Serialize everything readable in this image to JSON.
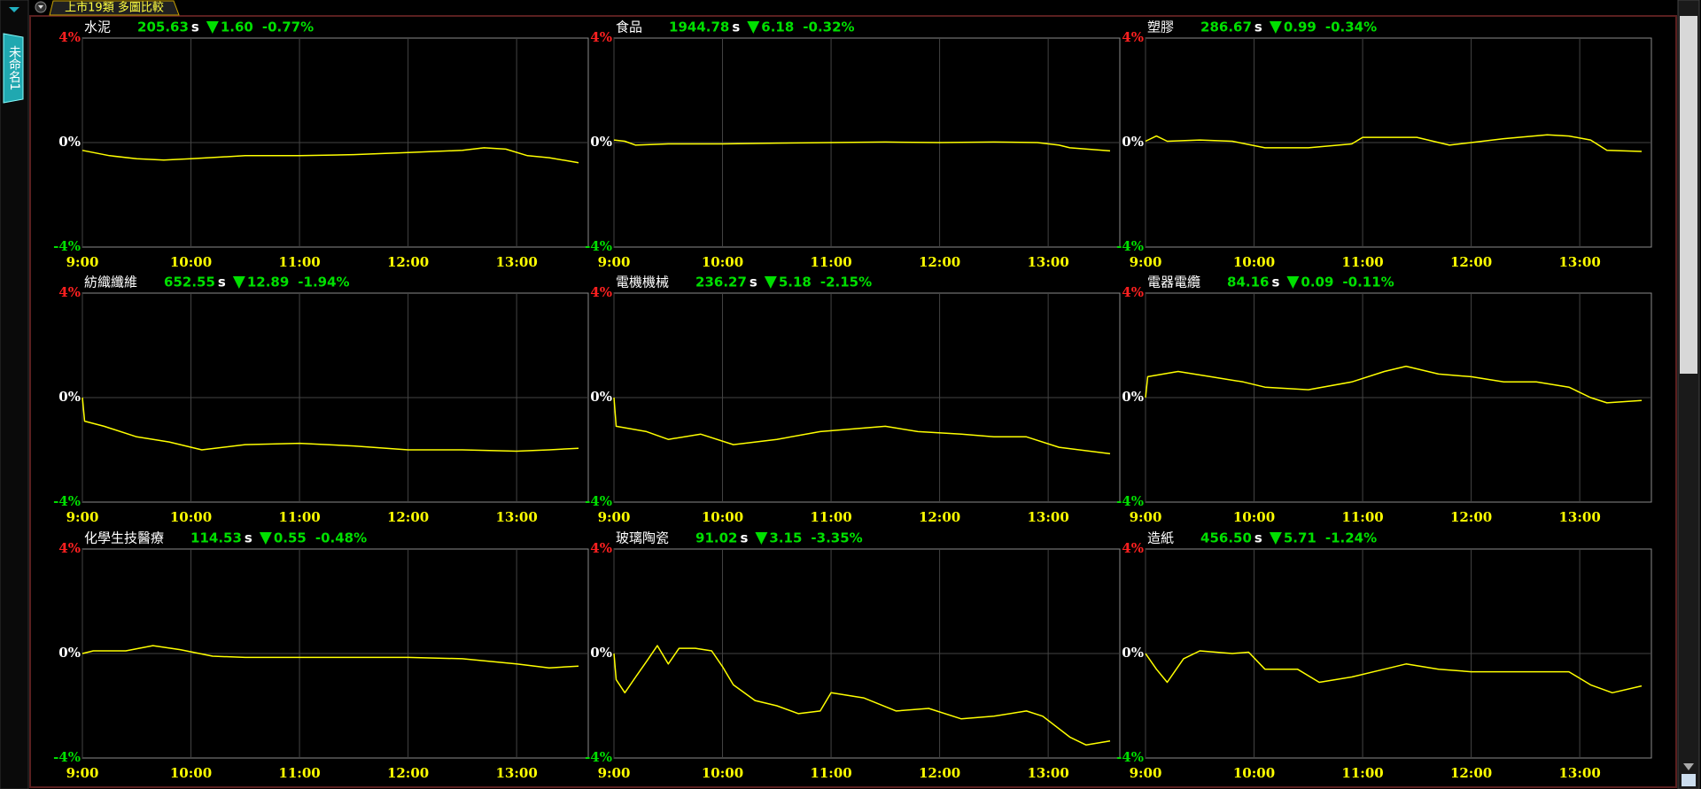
{
  "window": {
    "tab_title": "上市19類 多圖比較",
    "side_tab": "未命名1"
  },
  "chart_data": [
    {
      "type": "line",
      "name": "水泥",
      "price": "205.63",
      "unit": "s",
      "change": "1.60",
      "change_pct": "-0.77%",
      "x": [
        9,
        9.25,
        9.5,
        9.75,
        10,
        10.5,
        11,
        11.5,
        12,
        12.5,
        12.7,
        12.9,
        13.1,
        13.3,
        13.57
      ],
      "series": [
        {
          "color": "#ffff00",
          "values": [
            -0.3,
            -0.5,
            -0.62,
            -0.67,
            -0.62,
            -0.5,
            -0.5,
            -0.46,
            -0.38,
            -0.3,
            -0.2,
            -0.25,
            -0.5,
            -0.58,
            -0.77
          ]
        }
      ],
      "xlim": [
        9,
        13.66
      ],
      "ylim": [
        -4,
        4
      ],
      "xticks": [
        {
          "value": 9,
          "label": "9:00"
        },
        {
          "value": 10,
          "label": "10:00"
        },
        {
          "value": 11,
          "label": "11:00"
        },
        {
          "value": 12,
          "label": "12:00"
        },
        {
          "value": 13,
          "label": "13:00"
        }
      ],
      "yticks": [
        {
          "value": 4,
          "label": "4%"
        },
        {
          "value": 0,
          "label": "0%"
        },
        {
          "value": -4,
          "label": "-4%"
        }
      ],
      "ytick_colors": [
        "#ff2020",
        "#ffffff",
        "#00e000"
      ],
      "grid": true
    },
    {
      "type": "line",
      "name": "食品",
      "price": "1944.78",
      "unit": "s",
      "change": "6.18",
      "change_pct": "-0.32%",
      "x": [
        9,
        9.1,
        9.2,
        9.5,
        10,
        10.5,
        11,
        11.5,
        12,
        12.5,
        12.9,
        13.1,
        13.2,
        13.57
      ],
      "series": [
        {
          "color": "#ffff00",
          "values": [
            0.1,
            0.05,
            -0.1,
            -0.05,
            -0.05,
            -0.02,
            0,
            0.02,
            0,
            0.02,
            0,
            -0.1,
            -0.2,
            -0.32
          ]
        }
      ],
      "xlim": [
        9,
        13.66
      ],
      "ylim": [
        -4,
        4
      ],
      "xticks": [
        {
          "value": 9,
          "label": "9:00"
        },
        {
          "value": 10,
          "label": "10:00"
        },
        {
          "value": 11,
          "label": "11:00"
        },
        {
          "value": 12,
          "label": "12:00"
        },
        {
          "value": 13,
          "label": "13:00"
        }
      ],
      "yticks": [
        {
          "value": 4,
          "label": "4%"
        },
        {
          "value": 0,
          "label": "0%"
        },
        {
          "value": -4,
          "label": "-4%"
        }
      ],
      "ytick_colors": [
        "#ff2020",
        "#ffffff",
        "#00e000"
      ],
      "grid": true
    },
    {
      "type": "line",
      "name": "塑膠",
      "price": "286.67",
      "unit": "s",
      "change": "0.99",
      "change_pct": "-0.34%",
      "x": [
        9,
        9.1,
        9.2,
        9.5,
        9.8,
        10.1,
        10.5,
        10.9,
        11,
        11.3,
        11.5,
        11.8,
        12,
        12.3,
        12.7,
        12.9,
        13.1,
        13.25,
        13.57
      ],
      "series": [
        {
          "color": "#ffff00",
          "values": [
            0.05,
            0.25,
            0.05,
            0.1,
            0.05,
            -0.2,
            -0.2,
            -0.05,
            0.2,
            0.2,
            0.2,
            -0.1,
            0,
            0.15,
            0.3,
            0.25,
            0.1,
            -0.3,
            -0.34
          ]
        }
      ],
      "xlim": [
        9,
        13.66
      ],
      "ylim": [
        -4,
        4
      ],
      "xticks": [
        {
          "value": 9,
          "label": "9:00"
        },
        {
          "value": 10,
          "label": "10:00"
        },
        {
          "value": 11,
          "label": "11:00"
        },
        {
          "value": 12,
          "label": "12:00"
        },
        {
          "value": 13,
          "label": "13:00"
        }
      ],
      "yticks": [
        {
          "value": 4,
          "label": "4%"
        },
        {
          "value": 0,
          "label": "0%"
        },
        {
          "value": -4,
          "label": "-4%"
        }
      ],
      "ytick_colors": [
        "#ff2020",
        "#ffffff",
        "#00e000"
      ],
      "grid": true
    },
    {
      "type": "line",
      "name": "紡織纖維",
      "price": "652.55",
      "unit": "s",
      "change": "12.89",
      "change_pct": "-1.94%",
      "x": [
        9,
        9.02,
        9.2,
        9.5,
        9.8,
        10.1,
        10.5,
        11,
        11.5,
        12,
        12.5,
        13,
        13.3,
        13.57
      ],
      "series": [
        {
          "color": "#ffff00",
          "values": [
            0,
            -0.9,
            -1.1,
            -1.5,
            -1.7,
            -2.0,
            -1.8,
            -1.75,
            -1.85,
            -2.0,
            -2.0,
            -2.05,
            -2.0,
            -1.94
          ]
        }
      ],
      "xlim": [
        9,
        13.66
      ],
      "ylim": [
        -4,
        4
      ],
      "xticks": [
        {
          "value": 9,
          "label": "9:00"
        },
        {
          "value": 10,
          "label": "10:00"
        },
        {
          "value": 11,
          "label": "11:00"
        },
        {
          "value": 12,
          "label": "12:00"
        },
        {
          "value": 13,
          "label": "13:00"
        }
      ],
      "yticks": [
        {
          "value": 4,
          "label": "4%"
        },
        {
          "value": 0,
          "label": "0%"
        },
        {
          "value": -4,
          "label": "-4%"
        }
      ],
      "ytick_colors": [
        "#ff2020",
        "#ffffff",
        "#00e000"
      ],
      "grid": true
    },
    {
      "type": "line",
      "name": "電機機械",
      "price": "236.27",
      "unit": "s",
      "change": "5.18",
      "change_pct": "-2.15%",
      "x": [
        9,
        9.02,
        9.3,
        9.5,
        9.8,
        10.1,
        10.5,
        10.9,
        11.2,
        11.5,
        11.8,
        12.2,
        12.5,
        12.8,
        13.1,
        13.57
      ],
      "series": [
        {
          "color": "#ffff00",
          "values": [
            0,
            -1.1,
            -1.3,
            -1.6,
            -1.4,
            -1.8,
            -1.6,
            -1.3,
            -1.2,
            -1.1,
            -1.3,
            -1.4,
            -1.5,
            -1.5,
            -1.9,
            -2.15
          ]
        }
      ],
      "xlim": [
        9,
        13.66
      ],
      "ylim": [
        -4,
        4
      ],
      "xticks": [
        {
          "value": 9,
          "label": "9:00"
        },
        {
          "value": 10,
          "label": "10:00"
        },
        {
          "value": 11,
          "label": "11:00"
        },
        {
          "value": 12,
          "label": "12:00"
        },
        {
          "value": 13,
          "label": "13:00"
        }
      ],
      "yticks": [
        {
          "value": 4,
          "label": "4%"
        },
        {
          "value": 0,
          "label": "0%"
        },
        {
          "value": -4,
          "label": "-4%"
        }
      ],
      "ytick_colors": [
        "#ff2020",
        "#ffffff",
        "#00e000"
      ],
      "grid": true
    },
    {
      "type": "line",
      "name": "電器電纜",
      "price": "84.16",
      "unit": "s",
      "change": "0.09",
      "change_pct": "-0.11%",
      "x": [
        9,
        9.02,
        9.3,
        9.6,
        9.9,
        10.1,
        10.5,
        10.9,
        11.2,
        11.4,
        11.7,
        12,
        12.3,
        12.6,
        12.9,
        13.1,
        13.25,
        13.57
      ],
      "series": [
        {
          "color": "#ffff00",
          "values": [
            0,
            0.8,
            1.0,
            0.8,
            0.6,
            0.4,
            0.3,
            0.6,
            1.0,
            1.2,
            0.9,
            0.8,
            0.6,
            0.6,
            0.4,
            0.0,
            -0.2,
            -0.11
          ]
        }
      ],
      "xlim": [
        9,
        13.66
      ],
      "ylim": [
        -4,
        4
      ],
      "xticks": [
        {
          "value": 9,
          "label": "9:00"
        },
        {
          "value": 10,
          "label": "10:00"
        },
        {
          "value": 11,
          "label": "11:00"
        },
        {
          "value": 12,
          "label": "12:00"
        },
        {
          "value": 13,
          "label": "13:00"
        }
      ],
      "yticks": [
        {
          "value": 4,
          "label": "4%"
        },
        {
          "value": 0,
          "label": "0%"
        },
        {
          "value": -4,
          "label": "-4%"
        }
      ],
      "ytick_colors": [
        "#ff2020",
        "#ffffff",
        "#00e000"
      ],
      "grid": true
    },
    {
      "type": "line",
      "name": "化學生技醫療",
      "price": "114.53",
      "unit": "s",
      "change": "0.55",
      "change_pct": "-0.48%",
      "x": [
        9,
        9.1,
        9.4,
        9.65,
        9.9,
        10.2,
        10.5,
        11,
        11.5,
        12,
        12.5,
        13,
        13.3,
        13.57
      ],
      "series": [
        {
          "color": "#ffff00",
          "values": [
            0,
            0.1,
            0.1,
            0.3,
            0.15,
            -0.1,
            -0.15,
            -0.15,
            -0.15,
            -0.15,
            -0.2,
            -0.4,
            -0.55,
            -0.48
          ]
        }
      ],
      "xlim": [
        9,
        13.66
      ],
      "ylim": [
        -4,
        4
      ],
      "xticks": [
        {
          "value": 9,
          "label": "9:00"
        },
        {
          "value": 10,
          "label": "10:00"
        },
        {
          "value": 11,
          "label": "11:00"
        },
        {
          "value": 12,
          "label": "12:00"
        },
        {
          "value": 13,
          "label": "13:00"
        }
      ],
      "yticks": [
        {
          "value": 4,
          "label": "4%"
        },
        {
          "value": 0,
          "label": "0%"
        },
        {
          "value": -4,
          "label": "-4%"
        }
      ],
      "ytick_colors": [
        "#ff2020",
        "#ffffff",
        "#00e000"
      ],
      "grid": true
    },
    {
      "type": "line",
      "name": "玻璃陶瓷",
      "price": "91.02",
      "unit": "s",
      "change": "3.15",
      "change_pct": "-3.35%",
      "x": [
        9,
        9.02,
        9.1,
        9.2,
        9.3,
        9.4,
        9.5,
        9.6,
        9.75,
        9.9,
        10,
        10.1,
        10.3,
        10.5,
        10.7,
        10.9,
        11.0,
        11.3,
        11.6,
        11.9,
        12.2,
        12.5,
        12.8,
        12.95,
        13.2,
        13.35,
        13.57
      ],
      "series": [
        {
          "color": "#ffff00",
          "values": [
            0,
            -1.0,
            -1.5,
            -0.9,
            -0.3,
            0.3,
            -0.4,
            0.2,
            0.2,
            0.1,
            -0.5,
            -1.2,
            -1.8,
            -2.0,
            -2.3,
            -2.2,
            -1.5,
            -1.7,
            -2.2,
            -2.1,
            -2.5,
            -2.4,
            -2.2,
            -2.4,
            -3.2,
            -3.5,
            -3.35
          ]
        }
      ],
      "xlim": [
        9,
        13.66
      ],
      "ylim": [
        -4,
        4
      ],
      "xticks": [
        {
          "value": 9,
          "label": "9:00"
        },
        {
          "value": 10,
          "label": "10:00"
        },
        {
          "value": 11,
          "label": "11:00"
        },
        {
          "value": 12,
          "label": "12:00"
        },
        {
          "value": 13,
          "label": "13:00"
        }
      ],
      "yticks": [
        {
          "value": 4,
          "label": "4%"
        },
        {
          "value": 0,
          "label": "0%"
        },
        {
          "value": -4,
          "label": "-4%"
        }
      ],
      "ytick_colors": [
        "#ff2020",
        "#ffffff",
        "#00e000"
      ],
      "grid": true
    },
    {
      "type": "line",
      "name": "造紙",
      "price": "456.50",
      "unit": "s",
      "change": "5.71",
      "change_pct": "-1.24%",
      "x": [
        9,
        9.1,
        9.2,
        9.35,
        9.5,
        9.8,
        9.95,
        10.1,
        10.4,
        10.6,
        10.9,
        11.2,
        11.4,
        11.7,
        12,
        12.5,
        12.9,
        13.1,
        13.3,
        13.57
      ],
      "series": [
        {
          "color": "#ffff00",
          "values": [
            0,
            -0.6,
            -1.1,
            -0.2,
            0.1,
            0,
            0.05,
            -0.6,
            -0.6,
            -1.1,
            -0.9,
            -0.6,
            -0.4,
            -0.6,
            -0.7,
            -0.7,
            -0.7,
            -1.2,
            -1.5,
            -1.24
          ]
        }
      ],
      "xlim": [
        9,
        13.66
      ],
      "ylim": [
        -4,
        4
      ],
      "xticks": [
        {
          "value": 9,
          "label": "9:00"
        },
        {
          "value": 10,
          "label": "10:00"
        },
        {
          "value": 11,
          "label": "11:00"
        },
        {
          "value": 12,
          "label": "12:00"
        },
        {
          "value": 13,
          "label": "13:00"
        }
      ],
      "yticks": [
        {
          "value": 4,
          "label": "4%"
        },
        {
          "value": 0,
          "label": "0%"
        },
        {
          "value": -4,
          "label": "-4%"
        }
      ],
      "ytick_colors": [
        "#ff2020",
        "#ffffff",
        "#00e000"
      ],
      "grid": true
    }
  ]
}
